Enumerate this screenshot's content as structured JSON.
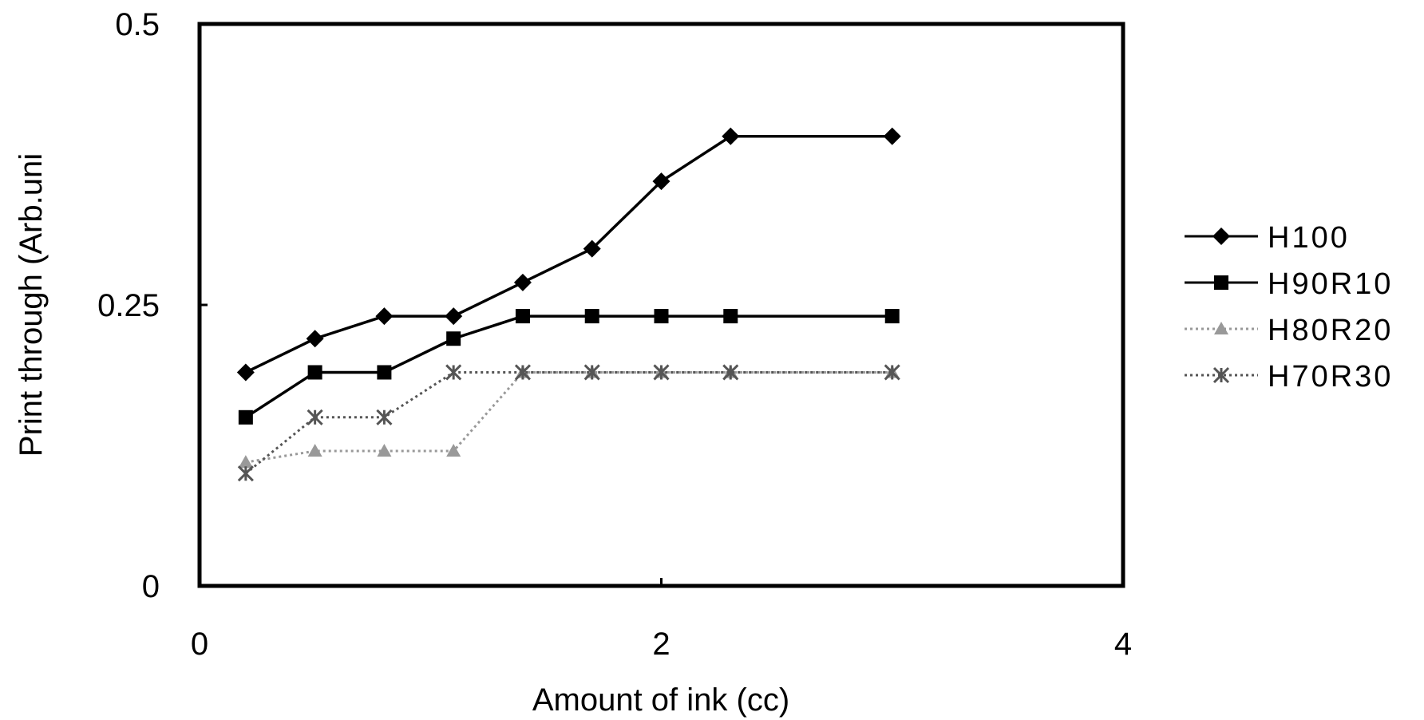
{
  "chart_data": {
    "type": "line",
    "title": "",
    "xlabel": "Amount of ink (cc)",
    "ylabel": "Print through (Arb.uni",
    "xlim": [
      0,
      4
    ],
    "ylim": [
      0,
      0.5
    ],
    "x_ticks": [
      "0",
      "2",
      "4"
    ],
    "y_ticks": [
      "0",
      "0.25",
      "0.5"
    ],
    "grid": false,
    "legend_position": "right",
    "x": [
      0.2,
      0.5,
      0.8,
      1.1,
      1.4,
      1.7,
      2.0,
      2.3,
      3.0
    ],
    "series": [
      {
        "name": "H100",
        "marker": "diamond",
        "color": "#000000",
        "line_style": "solid",
        "values": [
          0.19,
          0.22,
          0.24,
          0.24,
          0.27,
          0.3,
          0.36,
          0.4,
          0.4
        ]
      },
      {
        "name": "H90R10",
        "marker": "square",
        "color": "#000000",
        "line_style": "solid",
        "values": [
          0.15,
          0.19,
          0.19,
          0.22,
          0.24,
          0.24,
          0.24,
          0.24,
          0.24
        ]
      },
      {
        "name": "H80R20",
        "marker": "triangle",
        "color": "#999999",
        "line_style": "dotted",
        "values": [
          0.11,
          0.12,
          0.12,
          0.12,
          0.19,
          0.19,
          0.19,
          0.19,
          0.19
        ]
      },
      {
        "name": "H70R30",
        "marker": "x",
        "color": "#555555",
        "line_style": "dotted",
        "values": [
          0.1,
          0.15,
          0.15,
          0.19,
          0.19,
          0.19,
          0.19,
          0.19,
          0.19
        ]
      }
    ]
  }
}
